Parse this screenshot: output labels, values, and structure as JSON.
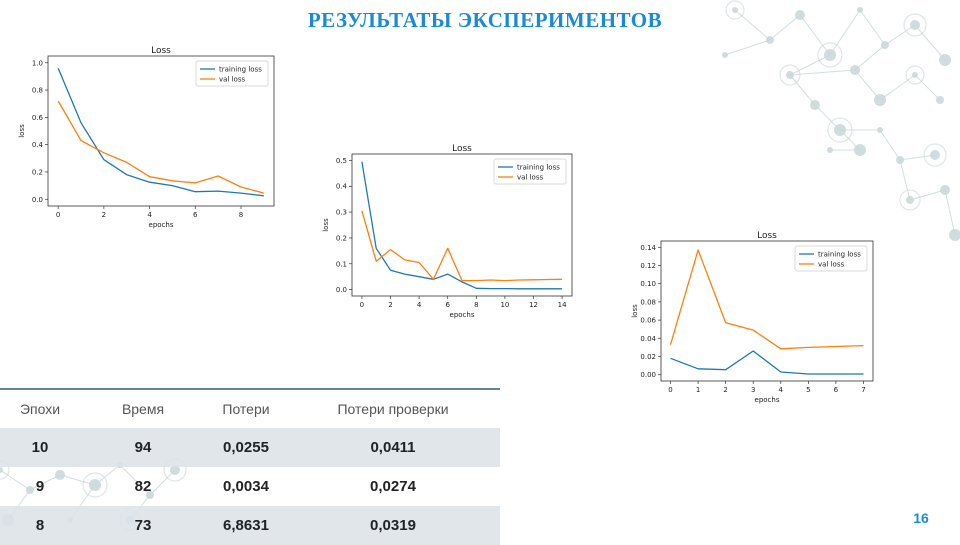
{
  "slide": {
    "title": "РЕЗУЛЬТАТЫ ЭКСПЕРИМЕНТОВ",
    "page_number": "16"
  },
  "colors": {
    "title": "#1a8ad6",
    "training_series": "#1f77b4",
    "val_series": "#ff7f0e",
    "table_row_shade": "#dce2e7",
    "table_rule": "#5e8a8c",
    "decoration": "#c9d6d8"
  },
  "table": {
    "headers": [
      "Эпохи",
      "Время",
      "Потери",
      "Потери проверки"
    ],
    "rows": [
      [
        "10",
        "94",
        "0,0255",
        "0,0411"
      ],
      [
        "9",
        "82",
        "0,0034",
        "0,0274"
      ],
      [
        "8",
        "73",
        "6,8631",
        "0,0319"
      ]
    ]
  },
  "chart_data": [
    {
      "type": "line",
      "title": "Loss",
      "xlabel": "epochs",
      "ylabel": "loss",
      "xlim": [
        0,
        9
      ],
      "ylim": [
        0,
        1.0
      ],
      "xticks": [
        0,
        2,
        4,
        6,
        8
      ],
      "yticks": [
        0.0,
        0.2,
        0.4,
        0.6,
        0.8,
        1.0
      ],
      "legend_position": "top-right",
      "grid": false,
      "x": [
        0,
        1,
        2,
        3,
        4,
        5,
        6,
        7,
        8,
        9
      ],
      "series": [
        {
          "name": "training loss",
          "color": "#1f77b4",
          "values": [
            0.96,
            0.56,
            0.29,
            0.18,
            0.125,
            0.1,
            0.055,
            0.06,
            0.045,
            0.025
          ]
        },
        {
          "name": "val loss",
          "color": "#ff7f0e",
          "values": [
            0.72,
            0.43,
            0.34,
            0.27,
            0.165,
            0.135,
            0.12,
            0.17,
            0.09,
            0.045
          ]
        }
      ]
    },
    {
      "type": "line",
      "title": "Loss",
      "xlabel": "epochs",
      "ylabel": "loss",
      "xlim": [
        0,
        14
      ],
      "ylim": [
        0,
        0.5
      ],
      "xticks": [
        0,
        2,
        4,
        6,
        8,
        10,
        12,
        14
      ],
      "yticks": [
        0.0,
        0.1,
        0.2,
        0.3,
        0.4,
        0.5
      ],
      "legend_position": "top-right",
      "grid": false,
      "x": [
        0,
        1,
        2,
        3,
        4,
        5,
        6,
        7,
        8,
        9,
        10,
        11,
        12,
        13,
        14
      ],
      "series": [
        {
          "name": "training loss",
          "color": "#1f77b4",
          "values": [
            0.495,
            0.16,
            0.075,
            0.06,
            0.05,
            0.04,
            0.06,
            0.03,
            0.005,
            0.004,
            0.004,
            0.003,
            0.003,
            0.003,
            0.003
          ]
        },
        {
          "name": "val loss",
          "color": "#ff7f0e",
          "values": [
            0.305,
            0.11,
            0.155,
            0.115,
            0.105,
            0.04,
            0.16,
            0.035,
            0.035,
            0.037,
            0.035,
            0.037,
            0.038,
            0.039,
            0.04
          ]
        }
      ]
    },
    {
      "type": "line",
      "title": "Loss",
      "xlabel": "epochs",
      "ylabel": "loss",
      "xlim": [
        0,
        7
      ],
      "ylim": [
        0,
        0.14
      ],
      "xticks": [
        0,
        1,
        2,
        3,
        4,
        5,
        6,
        7
      ],
      "yticks": [
        0.0,
        0.02,
        0.04,
        0.06,
        0.08,
        0.1,
        0.12,
        0.14
      ],
      "legend_position": "top-right",
      "grid": false,
      "x": [
        0,
        1,
        2,
        3,
        4,
        5,
        6,
        7
      ],
      "series": [
        {
          "name": "training loss",
          "color": "#1f77b4",
          "values": [
            0.018,
            0.0065,
            0.0055,
            0.026,
            0.003,
            0.0008,
            0.0008,
            0.0008
          ]
        },
        {
          "name": "val loss",
          "color": "#ff7f0e",
          "values": [
            0.033,
            0.137,
            0.057,
            0.049,
            0.0285,
            0.03,
            0.031,
            0.032
          ]
        }
      ]
    }
  ]
}
